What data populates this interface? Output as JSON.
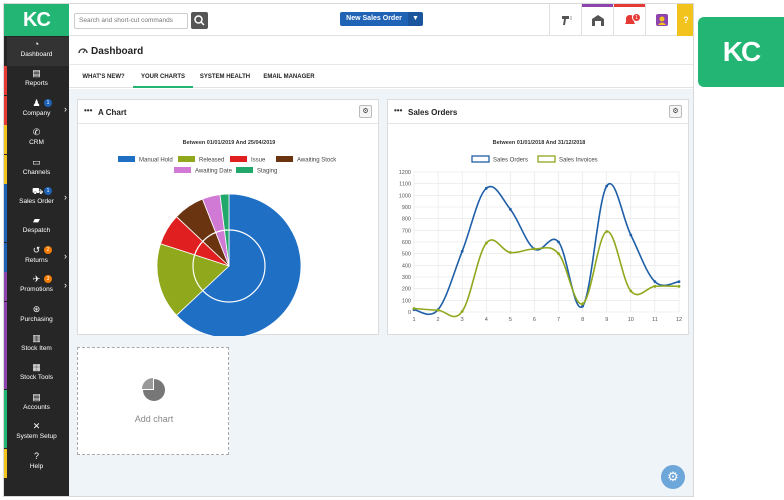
{
  "brand": {
    "logo_text": "KC",
    "big_logo_text": "KC"
  },
  "sidebar": {
    "items": [
      {
        "label": "Dashboard",
        "icon": "gauge-icon",
        "glyph": "◔",
        "stripe": "#262626"
      },
      {
        "label": "Reports",
        "icon": "report-icon",
        "glyph": "▤",
        "stripe": "#e53935"
      },
      {
        "label": "Company",
        "icon": "company-icon",
        "glyph": "♟",
        "stripe": "#e53935",
        "badge": "1",
        "badge_color": "#1f63b6",
        "arrow": true
      },
      {
        "label": "CRM",
        "icon": "phone-icon",
        "glyph": "✆",
        "stripe": "#f3c31d"
      },
      {
        "label": "Channels",
        "icon": "channels-icon",
        "glyph": "▭",
        "stripe": "#f3c31d"
      },
      {
        "label": "Sales Order",
        "icon": "cart-icon",
        "glyph": "⛟",
        "stripe": "#1f63b6",
        "badge": "1",
        "badge_color": "#1f63b6",
        "arrow": true
      },
      {
        "label": "Despatch",
        "icon": "truck-icon",
        "glyph": "▰",
        "stripe": "#1f63b6"
      },
      {
        "label": "Returns",
        "icon": "returns-icon",
        "glyph": "↺",
        "stripe": "#1f63b6",
        "badge": "2",
        "badge_color": "#f57c00",
        "arrow": true
      },
      {
        "label": "Promotions",
        "icon": "megaphone-icon",
        "glyph": "✈",
        "stripe": "#8e44ad",
        "badge": "3",
        "badge_color": "#f57c00",
        "arrow": true
      },
      {
        "label": "Purchasing",
        "icon": "purchasing-icon",
        "glyph": "⊛",
        "stripe": "#8e44ad"
      },
      {
        "label": "Stock Item",
        "icon": "barcode-icon",
        "glyph": "▥",
        "stripe": "#8e44ad"
      },
      {
        "label": "Stock Tools",
        "icon": "stock-tools-icon",
        "glyph": "▦",
        "stripe": "#8e44ad"
      },
      {
        "label": "Accounts",
        "icon": "accounts-icon",
        "glyph": "▤",
        "stripe": "#22b573"
      },
      {
        "label": "System Setup",
        "icon": "tools-icon",
        "glyph": "✕",
        "stripe": "#22b573"
      },
      {
        "label": "Help",
        "icon": "help-icon",
        "glyph": "?",
        "stripe": "#f3c31d"
      }
    ]
  },
  "topbar": {
    "search_placeholder": "Search and short-cut commands",
    "new_sales_order": "New Sales Order",
    "help_label": "?",
    "notifications_count": "1",
    "icons": [
      {
        "name": "scanner-icon",
        "stripe": "#ffffff"
      },
      {
        "name": "warehouse-icon",
        "stripe": "#8e44ad"
      },
      {
        "name": "bell-icon",
        "stripe": "#e53935"
      },
      {
        "name": "user-icon",
        "stripe": "#ffffff"
      }
    ]
  },
  "header": {
    "title": "Dashboard"
  },
  "tabs": [
    {
      "label": "WHAT'S NEW?"
    },
    {
      "label": "YOUR CHARTS",
      "active": true
    },
    {
      "label": "SYSTEM HEALTH"
    },
    {
      "label": "EMAIL MANAGER"
    }
  ],
  "panels": {
    "pie": {
      "title": "A Chart"
    },
    "line": {
      "title": "Sales Orders"
    },
    "add_chart": {
      "label": "Add chart"
    }
  },
  "chart_data": [
    {
      "type": "pie",
      "subtitle": "Between 01/01/2019 And 25/04/2019",
      "legend_placement": "top",
      "slices": [
        {
          "name": "Manual Hold",
          "value": 63,
          "color": "#1f6fc5"
        },
        {
          "name": "Released",
          "value": 17,
          "color": "#8fa81c"
        },
        {
          "name": "Issue",
          "value": 7,
          "color": "#e02020"
        },
        {
          "name": "Awaiting Stock",
          "value": 7,
          "color": "#6b3410"
        },
        {
          "name": "Awaiting Date",
          "value": 4,
          "color": "#d07ad6"
        },
        {
          "name": "Staging",
          "value": 2,
          "color": "#22a86b"
        }
      ]
    },
    {
      "type": "line",
      "subtitle": "Between 01/01/2018 And 31/12/2018",
      "legend_placement": "top",
      "x": [
        1,
        2,
        3,
        4,
        5,
        6,
        7,
        8,
        9,
        10,
        11,
        12
      ],
      "ylim": [
        0,
        1200
      ],
      "yticks": [
        0,
        100,
        200,
        300,
        400,
        500,
        600,
        700,
        800,
        900,
        1000,
        1100,
        1200
      ],
      "grid": true,
      "series": [
        {
          "name": "Sales Orders",
          "color": "#1f5fa8",
          "values": [
            20,
            20,
            520,
            1060,
            880,
            540,
            600,
            50,
            1080,
            660,
            260,
            260
          ]
        },
        {
          "name": "Sales Invoices",
          "color": "#8fa81c",
          "values": [
            30,
            15,
            5,
            590,
            510,
            540,
            500,
            70,
            690,
            180,
            220,
            220
          ]
        }
      ]
    }
  ]
}
